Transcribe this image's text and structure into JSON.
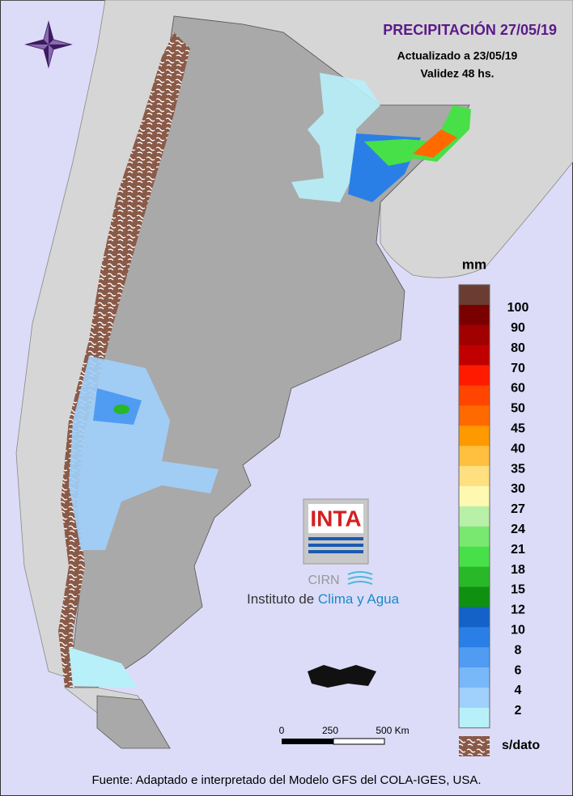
{
  "title": "PRECIPITACIÓN 27/05/19",
  "updated": "Actualizado a 23/05/19",
  "validity": "Validez 48 hs.",
  "legend": {
    "unit": "mm",
    "labels": [
      "100",
      "90",
      "80",
      "70",
      "60",
      "50",
      "45",
      "40",
      "35",
      "30",
      "27",
      "24",
      "21",
      "18",
      "15",
      "12",
      "10",
      "8",
      "6",
      "4",
      "2"
    ],
    "colors": [
      "#6b3d32",
      "#7a0000",
      "#a00000",
      "#c00000",
      "#ff1a00",
      "#ff4500",
      "#ff6a00",
      "#ff9900",
      "#ffc040",
      "#ffe080",
      "#fff8b0",
      "#b8f0a8",
      "#78e870",
      "#48e048",
      "#28b828",
      "#109010",
      "#1462c8",
      "#2a7fe6",
      "#4f9cf2",
      "#78b8f8",
      "#a0d0fc",
      "#b8f0fa"
    ],
    "no_data": "s/dato"
  },
  "scale_bar": {
    "labels": [
      "0",
      "250",
      "500 Km"
    ]
  },
  "logo": {
    "brand": "INTA",
    "unit": "CIRN",
    "institute": "Instituto de",
    "institute_highlight": "Clima y Agua"
  },
  "source": "Fuente: Adaptado e interpretado del Modelo GFS del COLA-IGES, USA."
}
